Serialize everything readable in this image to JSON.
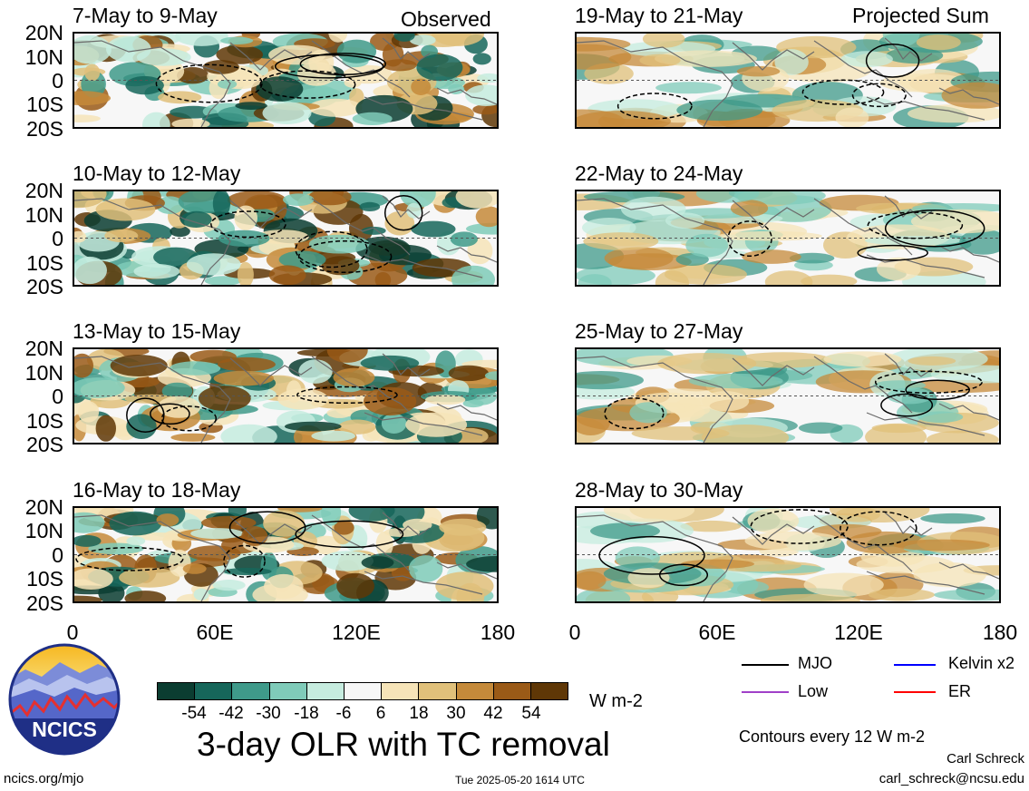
{
  "header": {
    "observed_label": "Observed",
    "projected_label": "Projected Sum"
  },
  "panels_left": [
    {
      "title": "7-May to 9-May"
    },
    {
      "title": "10-May to 12-May"
    },
    {
      "title": "13-May to 15-May"
    },
    {
      "title": "16-May to 18-May"
    }
  ],
  "panels_right": [
    {
      "title": "19-May to 21-May"
    },
    {
      "title": "22-May to 24-May"
    },
    {
      "title": "25-May to 27-May"
    },
    {
      "title": "28-May to 30-May"
    }
  ],
  "lat_labels": [
    "20N",
    "10N",
    "0",
    "10S",
    "20S"
  ],
  "lon_labels": [
    "0",
    "60E",
    "120E",
    "180"
  ],
  "colorbar": {
    "labels": [
      "-54",
      "-42",
      "-30",
      "-18",
      "-6",
      "6",
      "18",
      "30",
      "42",
      "54"
    ],
    "colors": [
      "#0b3d31",
      "#16665a",
      "#3f9a8a",
      "#7fcbb9",
      "#c6ecdf",
      "#f7f7f7",
      "#f6e4b8",
      "#e0c07a",
      "#c58a3a",
      "#9a5a17",
      "#5f3706"
    ],
    "unit": "W m-2"
  },
  "legend": {
    "items": [
      {
        "label": "MJO",
        "color": "#000000"
      },
      {
        "label": "Kelvin x2",
        "color": "#0000ff"
      },
      {
        "label": "Low",
        "color": "#a040c8"
      },
      {
        "label": "ER",
        "color": "#ff0000"
      }
    ],
    "contours_note": "Contours every 12 W m-2"
  },
  "footer": {
    "main_title": "3-day OLR with TC removal",
    "logo_text": "NCICS",
    "site": "ncics.org/mjo",
    "timestamp": "Tue 2025-05-20 1614 UTC",
    "author": "Carl Schreck",
    "email": "carl_schreck@ncsu.edu"
  }
}
